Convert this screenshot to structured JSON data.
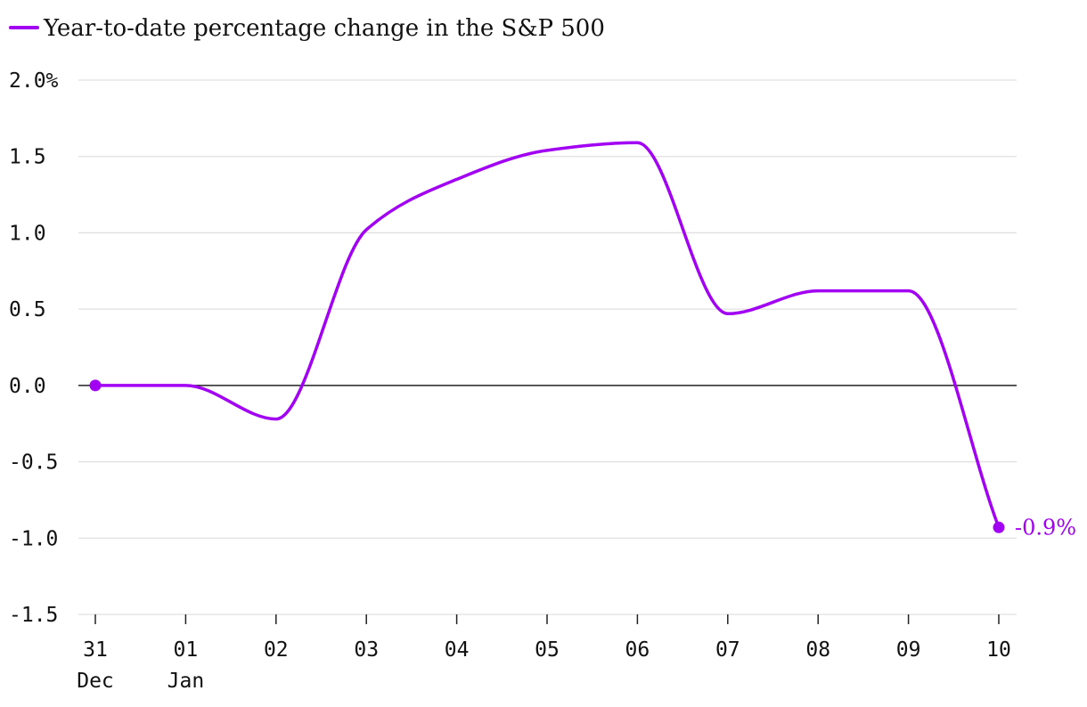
{
  "chart_data": {
    "type": "line",
    "title": "",
    "xlabel": "",
    "ylabel": "",
    "legend": {
      "label": "Year-to-date percentage change in the S&P 500",
      "position": "top-left"
    },
    "x_ticks": [
      {
        "label": "31",
        "sublabel": "Dec"
      },
      {
        "label": "01",
        "sublabel": "Jan"
      },
      {
        "label": "02",
        "sublabel": ""
      },
      {
        "label": "03",
        "sublabel": ""
      },
      {
        "label": "04",
        "sublabel": ""
      },
      {
        "label": "05",
        "sublabel": ""
      },
      {
        "label": "06",
        "sublabel": ""
      },
      {
        "label": "07",
        "sublabel": ""
      },
      {
        "label": "08",
        "sublabel": ""
      },
      {
        "label": "09",
        "sublabel": ""
      },
      {
        "label": "10",
        "sublabel": ""
      }
    ],
    "y_ticks": [
      {
        "value": 2.0,
        "label": "2.0%"
      },
      {
        "value": 1.5,
        "label": "1.5"
      },
      {
        "value": 1.0,
        "label": "1.0"
      },
      {
        "value": 0.5,
        "label": "0.5"
      },
      {
        "value": 0.0,
        "label": "0.0"
      },
      {
        "value": -0.5,
        "label": "-0.5"
      },
      {
        "value": -1.0,
        "label": "-1.0"
      },
      {
        "value": -1.5,
        "label": "-1.5"
      }
    ],
    "ylim": [
      -1.5,
      2.0
    ],
    "grid": true,
    "series": [
      {
        "name": "Year-to-date percentage change in the S&P 500",
        "color": "#a100f2",
        "x": [
          0,
          1,
          2,
          3,
          4,
          5,
          6,
          7,
          8,
          9,
          10
        ],
        "values": [
          0.0,
          0.0,
          -0.22,
          1.02,
          1.35,
          1.54,
          1.59,
          0.47,
          0.62,
          0.62,
          -0.93
        ]
      }
    ],
    "end_label": "-0.9%"
  },
  "colors": {
    "series": "#a100f2",
    "grid": "#e0e0e0",
    "zero_line": "#222222",
    "text": "#111111"
  }
}
